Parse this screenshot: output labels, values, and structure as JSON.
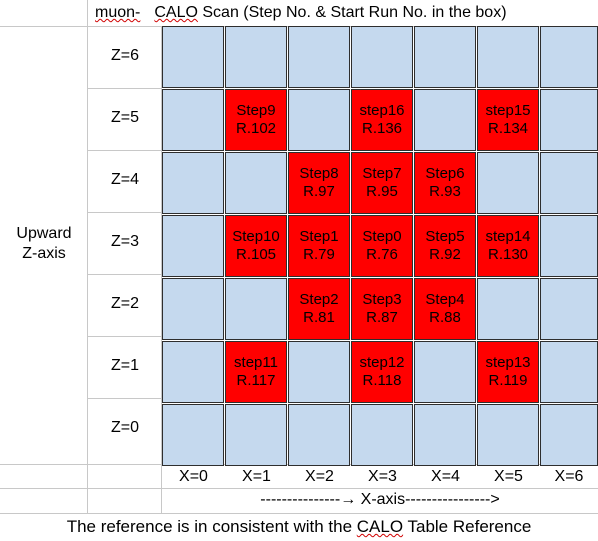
{
  "header": {
    "muon_label": "muon-",
    "title_prefix": "",
    "title_calo": "CALO",
    "title_rest": " Scan (Step No. & Start Run No.  in the box)"
  },
  "left_axis": {
    "line1": "Upward",
    "line2": "Z-axis"
  },
  "z_labels": [
    "Z=6",
    "Z=5",
    "Z=4",
    "Z=3",
    "Z=2",
    "Z=1",
    "Z=0"
  ],
  "x_labels": [
    "X=0",
    "X=1",
    "X=2",
    "X=3",
    "X=4",
    "X=5",
    "X=6"
  ],
  "x_axis_caption": "---------------→ X-axis---------------->",
  "footer": {
    "before": "The reference is in consistent with the ",
    "calo": "CALO",
    "after": " Table Reference"
  },
  "colors": {
    "empty_cell": "#c5d9ee",
    "filled_cell": "#ff0000",
    "border": "#2e2e2e"
  },
  "grid_cells": [
    {
      "z": 5,
      "x": 1,
      "step": "Step9",
      "run": "R.102"
    },
    {
      "z": 5,
      "x": 3,
      "step": "step16",
      "run": "R.136"
    },
    {
      "z": 5,
      "x": 5,
      "step": "step15",
      "run": "R.134"
    },
    {
      "z": 4,
      "x": 2,
      "step": "Step8",
      "run": "R.97"
    },
    {
      "z": 4,
      "x": 3,
      "step": "Step7",
      "run": "R.95"
    },
    {
      "z": 4,
      "x": 4,
      "step": "Step6",
      "run": "R.93"
    },
    {
      "z": 3,
      "x": 1,
      "step": "Step10",
      "run": "R.105"
    },
    {
      "z": 3,
      "x": 2,
      "step": "Step1",
      "run": "R.79"
    },
    {
      "z": 3,
      "x": 3,
      "step": "Step0",
      "run": "R.76"
    },
    {
      "z": 3,
      "x": 4,
      "step": "Step5",
      "run": "R.92"
    },
    {
      "z": 3,
      "x": 5,
      "step": "step14",
      "run": "R.130"
    },
    {
      "z": 2,
      "x": 2,
      "step": "Step2",
      "run": "R.81"
    },
    {
      "z": 2,
      "x": 3,
      "step": "Step3",
      "run": "R.87"
    },
    {
      "z": 2,
      "x": 4,
      "step": "Step4",
      "run": "R.88"
    },
    {
      "z": 1,
      "x": 1,
      "step": "step11",
      "run": "R.117"
    },
    {
      "z": 1,
      "x": 3,
      "step": "step12",
      "run": "R.118"
    },
    {
      "z": 1,
      "x": 5,
      "step": "step13",
      "run": "R.119"
    }
  ]
}
